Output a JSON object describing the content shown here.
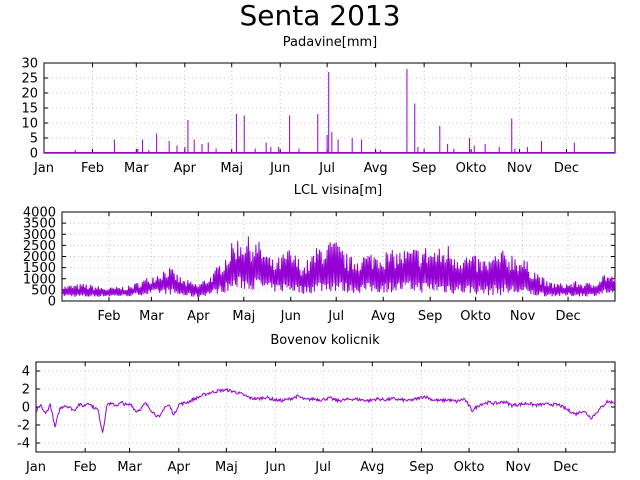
{
  "title": "Senta 2013",
  "colors": {
    "series": "#9400d3",
    "grid": "#c8c8c8",
    "frame": "#000000"
  },
  "chart_data": [
    {
      "type": "bar",
      "title": "Padavine[mm]",
      "xlabel": "",
      "ylabel": "",
      "ylim": [
        0,
        30
      ],
      "yticks": [
        "0",
        "5",
        "10",
        "15",
        "20",
        "25",
        "30"
      ],
      "xticks": [
        {
          "label": "Jan",
          "day": 0
        },
        {
          "label": "Feb",
          "day": 31
        },
        {
          "label": "Mar",
          "day": 59
        },
        {
          "label": "Apr",
          "day": 90
        },
        {
          "label": "Maj",
          "day": 120
        },
        {
          "label": "Jun",
          "day": 151
        },
        {
          "label": "Jul",
          "day": 181
        },
        {
          "label": "Avg",
          "day": 212
        },
        {
          "label": "Sep",
          "day": 243
        },
        {
          "label": "Okto",
          "day": 273
        },
        {
          "label": "Nov",
          "day": 304
        },
        {
          "label": "Dec",
          "day": 334
        }
      ],
      "xlim": [
        0,
        365
      ],
      "grid": true,
      "days": [
        20,
        45,
        60,
        63,
        67,
        72,
        80,
        85,
        90,
        92,
        96,
        101,
        105,
        110,
        123,
        128,
        135,
        142,
        145,
        150,
        157,
        163,
        175,
        181,
        182,
        184,
        188,
        197,
        203,
        215,
        232,
        237,
        239,
        243,
        253,
        258,
        262,
        272,
        275,
        282,
        291,
        299,
        301,
        309,
        318,
        339
      ],
      "values": [
        1,
        4.5,
        1.5,
        4.5,
        1,
        6.5,
        4,
        2.5,
        2,
        11,
        4.5,
        3,
        3.5,
        1.5,
        13,
        12.5,
        1.5,
        3.5,
        2,
        2,
        12.5,
        1.5,
        13,
        6,
        27,
        7,
        4.5,
        5,
        4.5,
        1,
        28,
        16.5,
        2,
        1.5,
        9,
        3,
        1.5,
        5,
        2.5,
        3,
        2,
        11.5,
        1.5,
        2,
        4,
        3.5
      ]
    },
    {
      "type": "line",
      "title": "LCL visina[m]",
      "xlabel": "",
      "ylabel": "",
      "ylim": [
        0,
        4000
      ],
      "yticks": [
        "0",
        "500",
        "1000",
        "1500",
        "2000",
        "2500",
        "3000",
        "3500",
        "4000"
      ],
      "xticks": [
        {
          "label": "Feb",
          "day": 31
        },
        {
          "label": "Mar",
          "day": 59
        },
        {
          "label": "Apr",
          "day": 90
        },
        {
          "label": "Maj",
          "day": 120
        },
        {
          "label": "Jun",
          "day": 151
        },
        {
          "label": "Jul",
          "day": 181
        },
        {
          "label": "Avg",
          "day": 212
        },
        {
          "label": "Sep",
          "day": 243
        },
        {
          "label": "Okto",
          "day": 273
        },
        {
          "label": "Nov",
          "day": 304
        },
        {
          "label": "Dec",
          "day": 334
        }
      ],
      "xlim": [
        0,
        365
      ],
      "grid": true,
      "envelope_days": [
        0,
        15,
        30,
        45,
        60,
        70,
        80,
        90,
        100,
        110,
        115,
        120,
        130,
        140,
        150,
        160,
        170,
        180,
        190,
        200,
        210,
        220,
        230,
        240,
        250,
        255,
        260,
        270,
        280,
        290,
        300,
        310,
        320,
        330,
        340,
        350,
        358,
        365
      ],
      "daily_max": [
        700,
        800,
        600,
        700,
        1200,
        1600,
        1000,
        800,
        1300,
        2400,
        2900,
        3000,
        2700,
        1800,
        2400,
        1700,
        2600,
        2800,
        2000,
        2200,
        2300,
        2300,
        2400,
        2500,
        2400,
        2600,
        2300,
        2100,
        1900,
        2300,
        2200,
        1600,
        900,
        800,
        900,
        800,
        1300,
        1100
      ],
      "daily_min": [
        200,
        150,
        200,
        200,
        300,
        300,
        200,
        150,
        300,
        400,
        500,
        500,
        500,
        400,
        400,
        300,
        400,
        400,
        350,
        350,
        350,
        400,
        400,
        350,
        350,
        300,
        300,
        300,
        250,
        250,
        250,
        200,
        200,
        200,
        200,
        200,
        300,
        300
      ]
    },
    {
      "type": "line",
      "title": "Bovenov kolicnik",
      "xlabel": "",
      "ylabel": "",
      "ylim": [
        -5,
        5
      ],
      "yticks": [
        "-4",
        "-2",
        "0",
        "2",
        "4"
      ],
      "ytick_values": [
        -4,
        -2,
        0,
        2,
        4
      ],
      "xticks": [
        {
          "label": "Jan",
          "day": 0
        },
        {
          "label": "Feb",
          "day": 31
        },
        {
          "label": "Mar",
          "day": 59
        },
        {
          "label": "Apr",
          "day": 90
        },
        {
          "label": "Maj",
          "day": 120
        },
        {
          "label": "Jun",
          "day": 151
        },
        {
          "label": "Jul",
          "day": 181
        },
        {
          "label": "Avg",
          "day": 212
        },
        {
          "label": "Sep",
          "day": 243
        },
        {
          "label": "Okto",
          "day": 273
        },
        {
          "label": "Nov",
          "day": 304
        },
        {
          "label": "Dec",
          "day": 334
        }
      ],
      "xlim": [
        0,
        365
      ],
      "grid": true,
      "days": [
        0,
        3,
        6,
        9,
        12,
        15,
        18,
        21,
        24,
        27,
        30,
        33,
        36,
        39,
        42,
        45,
        48,
        51,
        54,
        57,
        60,
        63,
        66,
        69,
        72,
        75,
        78,
        81,
        84,
        87,
        90,
        95,
        100,
        105,
        110,
        115,
        120,
        125,
        130,
        135,
        140,
        145,
        150,
        155,
        160,
        165,
        170,
        175,
        180,
        185,
        190,
        195,
        200,
        205,
        210,
        215,
        220,
        225,
        230,
        235,
        240,
        245,
        250,
        255,
        260,
        265,
        270,
        275,
        280,
        285,
        290,
        295,
        300,
        305,
        310,
        315,
        320,
        325,
        330,
        335,
        340,
        345,
        350,
        355,
        360,
        365
      ],
      "values": [
        -0.5,
        0.2,
        -0.8,
        0.3,
        -2.3,
        -0.2,
        0.2,
        0.0,
        -0.4,
        0.3,
        0.1,
        0.5,
        0.0,
        -0.3,
        -2.8,
        0.4,
        0.3,
        0.2,
        0.5,
        0.2,
        0.3,
        -0.5,
        -0.2,
        0.4,
        -0.2,
        -0.8,
        -1.2,
        0.0,
        0.2,
        -0.9,
        0.3,
        0.5,
        0.9,
        1.3,
        1.6,
        1.8,
        1.9,
        1.7,
        1.4,
        1.0,
        0.9,
        1.1,
        0.8,
        0.7,
        0.9,
        1.2,
        0.8,
        0.9,
        0.8,
        1.0,
        0.7,
        0.8,
        0.9,
        0.8,
        0.7,
        0.9,
        0.8,
        0.9,
        0.8,
        0.7,
        0.9,
        1.2,
        0.8,
        0.7,
        0.8,
        0.6,
        0.9,
        -0.4,
        0.3,
        0.5,
        0.4,
        0.6,
        0.2,
        0.3,
        0.4,
        0.2,
        0.3,
        0.3,
        0.2,
        -0.3,
        -0.8,
        -0.4,
        -1.2,
        -0.3,
        0.6,
        0.5
      ]
    }
  ]
}
